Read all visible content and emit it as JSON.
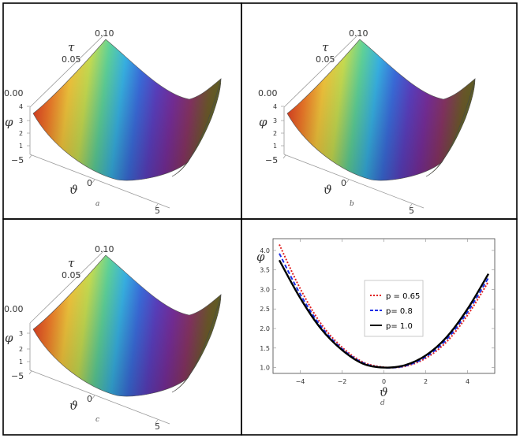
{
  "colors": {
    "rainbow": [
      "#e03a24",
      "#f47b2a",
      "#f6c83d",
      "#c9df52",
      "#5fd39a",
      "#38b3e6",
      "#3c6ee0",
      "#5d41c4",
      "#7a2f9e",
      "#8a3566",
      "#6f5a2c",
      "#5a6a1c"
    ],
    "series": [
      "#e02020",
      "#1a2ee6",
      "#000000"
    ],
    "frame": "#000000"
  },
  "panels_3d": [
    {
      "sub_label": "a",
      "tau_label": "τ",
      "phi_label": "φ",
      "theta_label": "ϑ",
      "tau_ticks": [
        "0.00",
        "0.05",
        "0.10"
      ],
      "phi_ticks": [
        "1",
        "2",
        "3",
        "4"
      ],
      "theta_ticks": [
        "−5",
        "0",
        "5"
      ]
    },
    {
      "sub_label": "b",
      "tau_label": "τ",
      "phi_label": "φ",
      "theta_label": "ϑ",
      "tau_ticks": [
        "0.00",
        "0.05",
        "0.10"
      ],
      "phi_ticks": [
        "1",
        "2",
        "3",
        "4"
      ],
      "theta_ticks": [
        "−5",
        "0",
        "5"
      ]
    },
    {
      "sub_label": "c",
      "tau_label": "τ",
      "phi_label": "φ",
      "theta_label": "ϑ",
      "tau_ticks": [
        "0.00",
        "0.05",
        "0.10"
      ],
      "phi_ticks": [
        "1",
        "2",
        "3"
      ],
      "theta_ticks": [
        "−5",
        "0",
        "5"
      ]
    }
  ],
  "chart_data": [
    {
      "type": "surface",
      "sub_label": "a",
      "x_axis": "ϑ",
      "y_axis": "τ",
      "z_axis": "φ",
      "xlim": [
        -5,
        5
      ],
      "ylim": [
        0,
        0.1
      ],
      "zlim": [
        1,
        4
      ]
    },
    {
      "type": "surface",
      "sub_label": "b",
      "x_axis": "ϑ",
      "y_axis": "τ",
      "z_axis": "φ",
      "xlim": [
        -5,
        5
      ],
      "ylim": [
        0,
        0.1
      ],
      "zlim": [
        1,
        4
      ]
    },
    {
      "type": "surface",
      "sub_label": "c",
      "x_axis": "ϑ",
      "y_axis": "τ",
      "z_axis": "φ",
      "xlim": [
        -5,
        5
      ],
      "ylim": [
        0,
        0.1
      ],
      "zlim": [
        1,
        3.5
      ]
    },
    {
      "type": "line",
      "sub_label": "d",
      "xlabel": "ϑ",
      "ylabel": "φ",
      "xlim": [
        -5.3,
        5.3
      ],
      "ylim": [
        0.85,
        4.3
      ],
      "x_ticks": [
        -4,
        -2,
        0,
        2,
        4
      ],
      "x_tick_labels": [
        "−4",
        "−2",
        "0",
        "2",
        "4"
      ],
      "y_ticks": [
        1.0,
        1.5,
        2.0,
        2.5,
        3.0,
        3.5,
        4.0
      ],
      "y_tick_labels": [
        "1.0",
        "1.5",
        "2.0",
        "2.5",
        "3.0",
        "3.5",
        "4.0"
      ],
      "legend_position": "center",
      "series": [
        {
          "name": "p = 0.65",
          "style": "dotted",
          "x": [
            -5,
            -4,
            -3,
            -2,
            -1,
            0,
            1,
            2,
            3,
            4,
            5
          ],
          "y": [
            4.15,
            3.02,
            2.12,
            1.52,
            1.14,
            1.01,
            1.03,
            1.24,
            1.66,
            2.34,
            3.2
          ]
        },
        {
          "name": "p= 0.8",
          "style": "dashed",
          "x": [
            -5,
            -4,
            -3,
            -2,
            -1,
            0,
            1,
            2,
            3,
            4,
            5
          ],
          "y": [
            3.92,
            2.88,
            2.05,
            1.48,
            1.12,
            1.0,
            1.04,
            1.27,
            1.72,
            2.42,
            3.3
          ]
        },
        {
          "name": "p= 1.0",
          "style": "solid",
          "x": [
            -5,
            -4,
            -3,
            -2,
            -1,
            0,
            1,
            2,
            3,
            4,
            5
          ],
          "y": [
            3.75,
            2.78,
            1.99,
            1.45,
            1.1,
            1.0,
            1.06,
            1.31,
            1.78,
            2.5,
            3.4
          ]
        }
      ]
    }
  ]
}
